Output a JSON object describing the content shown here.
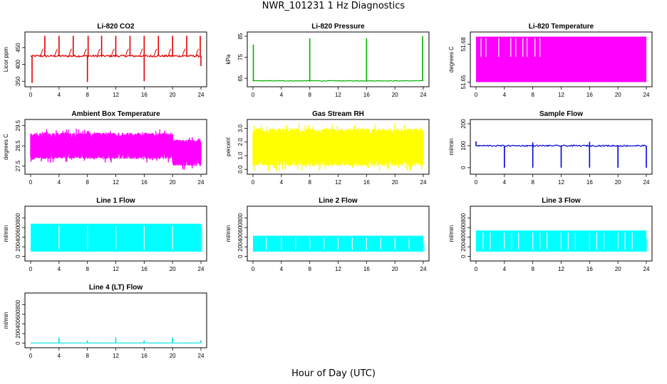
{
  "figure": {
    "title": "NWR_101231  1 Hz Diagnostics",
    "xlabel": "Hour of Day (UTC)"
  },
  "chart_data": [
    {
      "type": "line",
      "title": "Li-820 CO2",
      "ylabel": "Licor ppm",
      "ylim": [
        340,
        490
      ],
      "yticks": [
        350,
        400,
        450
      ],
      "xticks": [
        0,
        4,
        8,
        12,
        16,
        20,
        24
      ],
      "xlim": [
        0,
        24
      ],
      "color": "#e00000",
      "baseline": 425,
      "spikes_up": [
        [
          2,
          485
        ],
        [
          4,
          485
        ],
        [
          6,
          485
        ],
        [
          8.1,
          485
        ],
        [
          10,
          485
        ],
        [
          12,
          485
        ],
        [
          14,
          485
        ],
        [
          16,
          485
        ],
        [
          18,
          485
        ],
        [
          20,
          485
        ],
        [
          22,
          485
        ],
        [
          23.9,
          485
        ]
      ],
      "spikes_down": [
        [
          0.2,
          345
        ],
        [
          8,
          348
        ],
        [
          16,
          350
        ],
        [
          24,
          395
        ]
      ],
      "noise": 3
    },
    {
      "type": "line",
      "title": "Li-820 Pressure",
      "ylabel": "kPa",
      "ylim": [
        62,
        86
      ],
      "yticks": [
        65,
        75,
        85
      ],
      "xticks": [
        0,
        4,
        8,
        12,
        16,
        20,
        24
      ],
      "xlim": [
        0,
        24
      ],
      "color": "#00b000",
      "baseline": 63.8,
      "spikes_up": [
        [
          0.05,
          81
        ],
        [
          8,
          84
        ],
        [
          16,
          84
        ],
        [
          23.9,
          85
        ]
      ],
      "spikes_down": [],
      "noise": 0.15
    },
    {
      "type": "band",
      "title": "Li-820 Temperature",
      "ylabel": "degrees C",
      "ylim": [
        51.648,
        51.688
      ],
      "yticks": [
        51.65,
        51.68
      ],
      "ytick_labels": [
        "51.65",
        "51.68"
      ],
      "xticks": [
        0,
        4,
        8,
        12,
        16,
        20,
        24
      ],
      "xlim": [
        0,
        24
      ],
      "color": "#ff00ff",
      "band_low": 51.65,
      "band_high": 51.686,
      "band_start": 0,
      "band_end": 24,
      "gaps_top": [
        0.7,
        1.4,
        3.2,
        4.9,
        5.6,
        6.6,
        7.2,
        8.3,
        9.0
      ],
      "gap_depth": 51.67
    },
    {
      "type": "band",
      "title": "Ambient Box Temperature",
      "ylabel": "degrees C",
      "ylim": [
        27.2,
        29.7
      ],
      "yticks": [
        27.5,
        28.5,
        29.5
      ],
      "xticks": [
        0,
        4,
        8,
        12,
        16,
        20,
        24
      ],
      "xlim": [
        0,
        24
      ],
      "color": "#ff00ff",
      "band_low": 27.9,
      "band_high": 29.2,
      "band_start": 0,
      "band_end": 24,
      "noisy": true,
      "segments": [
        [
          0,
          20,
          27.85,
          29.15
        ],
        [
          20,
          24,
          27.5,
          28.8
        ]
      ]
    },
    {
      "type": "band",
      "title": "Gas Stream RH",
      "ylabel": "percent",
      "ylim": [
        -0.2,
        3.5
      ],
      "yticks": [
        0.0,
        1.0,
        2.0,
        3.0
      ],
      "ytick_labels": [
        "0.0",
        "1.0",
        "2.0",
        "3.0"
      ],
      "xticks": [
        0,
        4,
        8,
        12,
        16,
        20,
        24
      ],
      "xlim": [
        0,
        24
      ],
      "color": "#ffff00",
      "band_low": 0.2,
      "band_high": 3.0,
      "band_start": 0,
      "band_end": 24,
      "noisy": true,
      "segments": [
        [
          0,
          24,
          0.25,
          3.0
        ]
      ]
    },
    {
      "type": "line",
      "title": "Sample Flow",
      "ylabel": "ml/min",
      "ylim": [
        -20,
        210
      ],
      "yticks": [
        0,
        100,
        200
      ],
      "xticks": [
        0,
        4,
        8,
        12,
        16,
        20,
        24
      ],
      "xlim": [
        0,
        24
      ],
      "color": "#0000e0",
      "baseline": 100,
      "spikes_up": [
        [
          0,
          120
        ],
        [
          8,
          115
        ],
        [
          16,
          118
        ]
      ],
      "spikes_down": [
        [
          4,
          0
        ],
        [
          8,
          0
        ],
        [
          12,
          0
        ],
        [
          16,
          0
        ],
        [
          20,
          0
        ],
        [
          24,
          0
        ]
      ],
      "noise": 3
    },
    {
      "type": "band",
      "title": "Line 1 Flow",
      "ylabel": "ml/min",
      "ylim": [
        -50,
        1000
      ],
      "yticks": [
        0,
        200,
        400,
        600,
        800
      ],
      "xticks": [
        0,
        4,
        8,
        12,
        16,
        20,
        24
      ],
      "xlim": [
        0,
        24
      ],
      "color": "#00ffff",
      "band_low": 100,
      "band_high": 680,
      "band_start": 0,
      "band_end": 24,
      "gaps": [
        4,
        8,
        12,
        16,
        20
      ],
      "tail": [
        24,
        600
      ]
    },
    {
      "type": "band",
      "title": "Line 2 Flow",
      "ylabel": "ml/min",
      "ylim": [
        -50,
        1000
      ],
      "yticks": [
        0,
        200,
        400,
        600,
        800
      ],
      "xticks": [
        0,
        4,
        8,
        12,
        16,
        20,
        24
      ],
      "xlim": [
        0,
        24
      ],
      "color": "#00ffff",
      "band_low": 100,
      "band_high": 430,
      "band_start": 0,
      "band_end": 24,
      "gaps": [
        1.9,
        4,
        6,
        8,
        10,
        12,
        14,
        16,
        18,
        20,
        22
      ],
      "tail": [
        24,
        250
      ]
    },
    {
      "type": "band",
      "title": "Line 3 Flow",
      "ylabel": "ml/min",
      "ylim": [
        -50,
        1000
      ],
      "yticks": [
        0,
        200,
        400,
        600,
        800
      ],
      "xticks": [
        0,
        4,
        8,
        12,
        16,
        20,
        24
      ],
      "xlim": [
        0,
        24
      ],
      "color": "#00ffff",
      "band_low": 100,
      "band_high": 540,
      "band_start": 0,
      "band_end": 24,
      "gaps": [
        1,
        2,
        4,
        5,
        6,
        8,
        9,
        10,
        12,
        13,
        14,
        16,
        17,
        18,
        20,
        21,
        22
      ],
      "tail": [
        24,
        380
      ]
    },
    {
      "type": "line",
      "title": "Line 4 (LT) Flow",
      "ylabel": "ml/min",
      "ylim": [
        -50,
        1000
      ],
      "yticks": [
        0,
        200,
        400,
        600,
        800
      ],
      "xticks": [
        0,
        4,
        8,
        12,
        16,
        20,
        24
      ],
      "xlim": [
        0,
        24
      ],
      "color": "#00e0e0",
      "baseline": 5,
      "spikes_up": [
        [
          4,
          120
        ],
        [
          8,
          60
        ],
        [
          12,
          120
        ],
        [
          16,
          60
        ],
        [
          20,
          120
        ],
        [
          24,
          60
        ]
      ],
      "spikes_down": [],
      "noise": 1
    }
  ]
}
